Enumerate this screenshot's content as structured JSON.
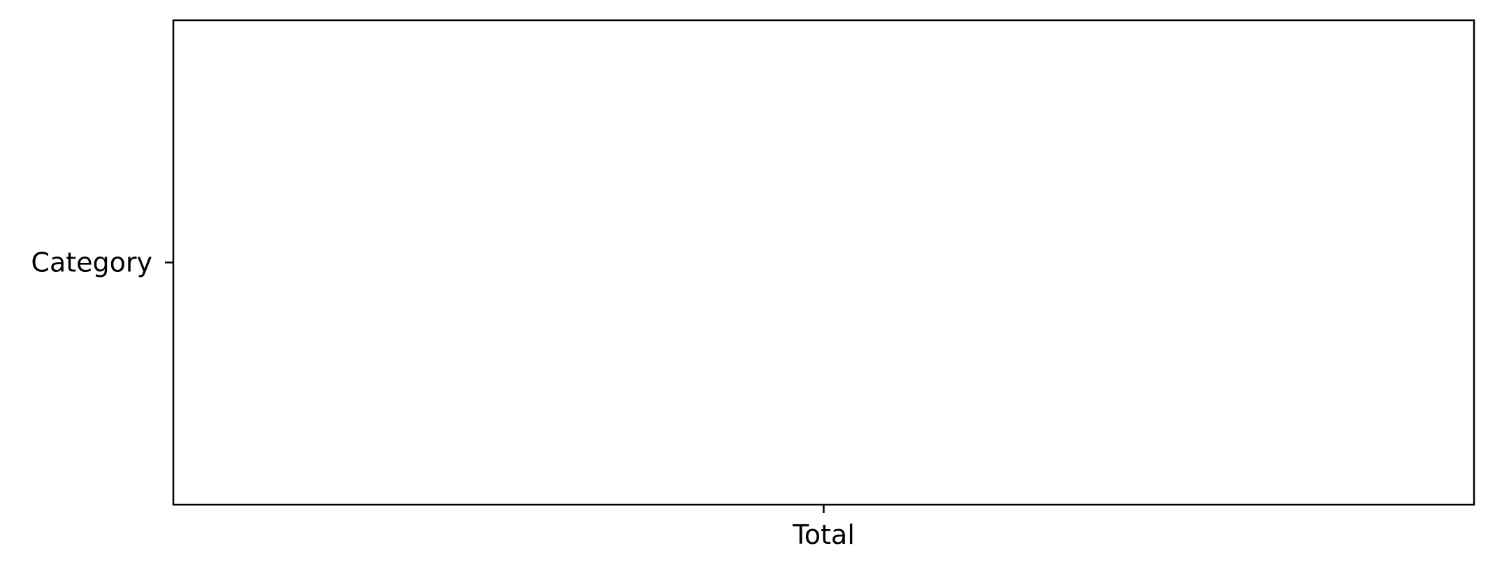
{
  "chart_data": {
    "type": "heatmap",
    "x_categories": [
      "Total"
    ],
    "y_categories": [
      "Category"
    ],
    "values": [],
    "title": "",
    "xlabel": "",
    "ylabel": "",
    "colors": {
      "background": "#ffffff",
      "axis": "#000000",
      "text": "#000000"
    }
  }
}
